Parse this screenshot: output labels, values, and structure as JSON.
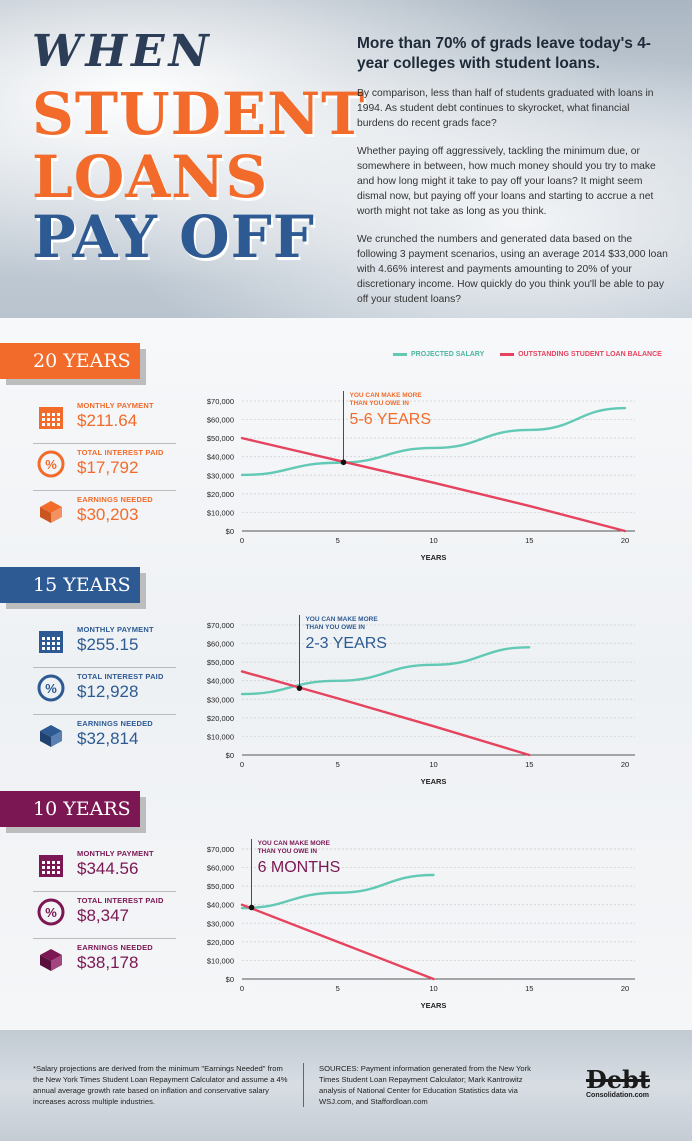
{
  "header": {
    "title_when": "WHEN",
    "title_student": "STUDENT",
    "title_loans": "LOANS",
    "title_payoff": "PAY OFF",
    "headline": "More than 70% of grads leave today's 4-year colleges with student loans.",
    "para1": "By comparison, less than half of students graduated with loans in 1994. As student debt continues to skyrocket, what financial burdens do recent grads face?",
    "para2": "Whether paying off aggressively, tackling the minimum due, or somewhere in between, how much money should you try to make and how long might it take to pay off your loans? It might seem dismal now, but paying off your loans and starting to accrue a net worth might not take as long as you think.",
    "para3": "We crunched the numbers and generated data based on the following 3 payment scenarios, using an average 2014 $33,000 loan with 4.66% interest and payments amounting to 20% of your discretionary income. How quickly do you think you'll be able to pay off your student loans?"
  },
  "legend": {
    "salary": "PROJECTED SALARY",
    "loan": "OUTSTANDING STUDENT LOAN BALANCE",
    "salary_color": "#62c9b5",
    "loan_color": "#e6435e"
  },
  "labels": {
    "monthly": "MONTHLY PAYMENT",
    "interest": "TOTAL INTEREST PAID",
    "earnings": "EARNINGS NEEDED",
    "callout": "YOU CAN MAKE MORE THAN YOU OWE IN"
  },
  "sections": [
    {
      "banner": "20 YEARS",
      "color": "#f26b2a",
      "monthly": "$211.64",
      "interest": "$17,792",
      "earnings": "$30,203",
      "callout_value": "5-6 YEARS"
    },
    {
      "banner": "15 YEARS",
      "color": "#2d5a93",
      "monthly": "$255.15",
      "interest": "$12,928",
      "earnings": "$32,814",
      "callout_value": "2-3 YEARS"
    },
    {
      "banner": "10 YEARS",
      "color": "#7b1753",
      "monthly": "$344.56",
      "interest": "$8,347",
      "earnings": "$38,178",
      "callout_value": "6 MONTHS"
    }
  ],
  "chart_data": [
    {
      "type": "line",
      "xlabel": "YEARS",
      "xlim": [
        0,
        20
      ],
      "ylim": [
        0,
        70000
      ],
      "x_ticks": [
        "0",
        "5",
        "10",
        "15",
        "20"
      ],
      "y_ticks": [
        "$0",
        "$10,000",
        "$20,000",
        "$30,000",
        "$40,000",
        "$50,000",
        "$60,000",
        "$70,000"
      ],
      "series": [
        {
          "name": "PROJECTED SALARY",
          "x": [
            0,
            5,
            10,
            15,
            20
          ],
          "y": [
            30203,
            36747,
            44708,
            54395,
            66181
          ]
        },
        {
          "name": "OUTSTANDING STUDENT LOAN BALANCE",
          "x": [
            0,
            5,
            10,
            15,
            20
          ],
          "y": [
            50000,
            38000,
            26000,
            13500,
            0
          ]
        }
      ],
      "intersection": {
        "x": 5.3,
        "y": 37000
      },
      "callout": "YOU CAN MAKE MORE THAN YOU OWE IN 5-6 YEARS"
    },
    {
      "type": "line",
      "xlabel": "YEARS",
      "xlim": [
        0,
        20
      ],
      "ylim": [
        0,
        70000
      ],
      "x_ticks": [
        "0",
        "5",
        "10",
        "15",
        "20"
      ],
      "y_ticks": [
        "$0",
        "$10,000",
        "$20,000",
        "$30,000",
        "$40,000",
        "$50,000",
        "$60,000",
        "$70,000"
      ],
      "series": [
        {
          "name": "PROJECTED SALARY",
          "x": [
            0,
            5,
            10,
            15
          ],
          "y": [
            32814,
            39923,
            48573,
            58000
          ]
        },
        {
          "name": "OUTSTANDING STUDENT LOAN BALANCE",
          "x": [
            0,
            5,
            10,
            15
          ],
          "y": [
            45000,
            30500,
            15500,
            0
          ]
        }
      ],
      "intersection": {
        "x": 3.0,
        "y": 36000
      },
      "callout": "YOU CAN MAKE MORE THAN YOU OWE IN 2-3 YEARS"
    },
    {
      "type": "line",
      "xlabel": "YEARS",
      "xlim": [
        0,
        20
      ],
      "ylim": [
        0,
        70000
      ],
      "x_ticks": [
        "0",
        "5",
        "10",
        "15",
        "20"
      ],
      "y_ticks": [
        "$0",
        "$10,000",
        "$20,000",
        "$30,000",
        "$40,000",
        "$50,000",
        "$60,000",
        "$70,000"
      ],
      "series": [
        {
          "name": "PROJECTED SALARY",
          "x": [
            0,
            5,
            10
          ],
          "y": [
            38178,
            46449,
            56000
          ]
        },
        {
          "name": "OUTSTANDING STUDENT LOAN BALANCE",
          "x": [
            0,
            5,
            10
          ],
          "y": [
            40000,
            20000,
            0
          ]
        }
      ],
      "intersection": {
        "x": 0.5,
        "y": 38500
      },
      "callout": "YOU CAN MAKE MORE THAN YOU OWE IN 6 MONTHS"
    }
  ],
  "footer": {
    "note": "*Salary projections are derived from the minimum \"Earnings Needed\" from the New York Times Student Loan Repayment Calculator and assume a 4% annual average growth rate based on inflation and conservative salary increases across multiple industries.",
    "sources": "SOURCES: Payment information generated from the New York Times Student Loan Repayment Calculator; Mark Kantrowitz analysis of National Center for Education Statistics data via WSJ.com, and Staffordloan.com",
    "logo_big": "Debt",
    "logo_small": "Consolidation.com"
  }
}
